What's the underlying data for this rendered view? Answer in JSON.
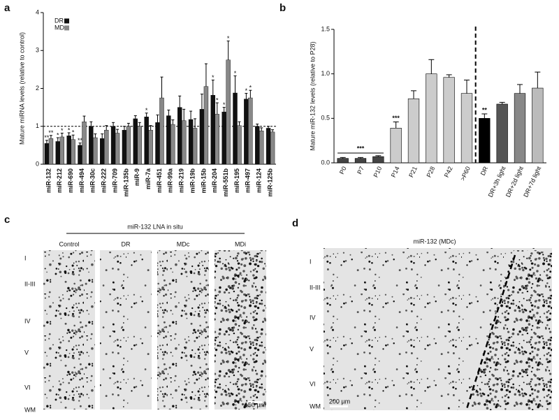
{
  "chart_data": [
    {
      "type": "bar",
      "panel": "a",
      "y_label": "Mature miRNA levels (relative to control)",
      "categories": [
        "miR-132",
        "miR-212",
        "miR-690",
        "miR-494",
        "miR-30c",
        "miR-222",
        "miR-709",
        "miR-135b",
        "miR-9",
        "miR-7a",
        "miR-451",
        "miR-99a",
        "miR-219",
        "miR-19b",
        "miR-15b",
        "miR-204",
        "miR-551b",
        "miR-195",
        "miR-497",
        "miR-124",
        "miR-125b"
      ],
      "series": [
        {
          "name": "DR",
          "color": "#111111",
          "values": [
            0.55,
            0.6,
            0.75,
            0.5,
            1.0,
            0.68,
            1.0,
            0.9,
            1.2,
            1.25,
            1.1,
            1.28,
            1.5,
            1.18,
            1.45,
            1.82,
            1.38,
            1.88,
            1.72,
            1.0,
            0.95
          ],
          "errors": [
            0.08,
            0.1,
            0.08,
            0.06,
            0.12,
            0.12,
            0.1,
            0.1,
            0.08,
            0.1,
            0.2,
            0.15,
            0.3,
            0.22,
            0.4,
            0.4,
            0.12,
            0.45,
            0.15,
            0.06,
            0.05
          ],
          "markers": [
            "**",
            "*",
            "*",
            "**",
            null,
            null,
            null,
            null,
            null,
            "*",
            null,
            null,
            null,
            null,
            null,
            "*",
            "*",
            "*",
            "*",
            null,
            null
          ]
        },
        {
          "name": "MD",
          "color": "#888888",
          "values": [
            0.68,
            0.72,
            0.65,
            1.12,
            0.7,
            0.9,
            0.82,
            1.0,
            1.0,
            0.9,
            1.75,
            1.05,
            1.15,
            0.95,
            2.05,
            1.32,
            2.75,
            1.02,
            1.75,
            0.88,
            0.85
          ],
          "errors": [
            0.08,
            0.1,
            0.12,
            0.15,
            0.1,
            0.12,
            0.1,
            0.08,
            0.1,
            0.12,
            0.55,
            0.12,
            0.3,
            0.25,
            0.6,
            0.3,
            0.5,
            0.1,
            0.2,
            0.08,
            0.06
          ],
          "markers": [
            "**",
            "*",
            "*",
            null,
            null,
            null,
            null,
            null,
            null,
            null,
            null,
            null,
            null,
            null,
            null,
            "*",
            "*",
            null,
            "*",
            null,
            null
          ]
        }
      ],
      "ylim": [
        0,
        4
      ],
      "yticks": [
        0,
        1,
        2,
        3,
        4
      ],
      "reference_line": 1,
      "legend": "top-left"
    },
    {
      "type": "bar",
      "panel": "b",
      "y_label": "Mature miR-132 levels (relative to P28)",
      "categories": [
        "P0",
        "P7",
        "P10",
        "P14",
        "P21",
        "P28",
        "P42",
        ">P60",
        "DR",
        "DR+3h light",
        "DR+2d light",
        "DR+7d light"
      ],
      "values": [
        0.05,
        0.05,
        0.07,
        0.39,
        0.72,
        1.0,
        0.96,
        0.78,
        0.5,
        0.66,
        0.78,
        0.84
      ],
      "errors": [
        0.01,
        0.01,
        0.01,
        0.07,
        0.09,
        0.16,
        0.03,
        0.15,
        0.05,
        0.02,
        0.1,
        0.18
      ],
      "colors": [
        "#444444",
        "#444444",
        "#444444",
        "#cccccc",
        "#cccccc",
        "#cccccc",
        "#cccccc",
        "#cccccc",
        "#000000",
        "#555555",
        "#888888",
        "#bbbbbb"
      ],
      "markers": [
        null,
        null,
        null,
        "***",
        null,
        null,
        null,
        null,
        "**",
        null,
        null,
        null
      ],
      "bracket": {
        "label": "***",
        "start": "P0",
        "end": "P10"
      },
      "divider_after": ">P60",
      "ylim": [
        0,
        1.5
      ],
      "yticks": [
        {
          "value": 0,
          "label": "0.0"
        },
        0.5,
        {
          "value": 1,
          "label": "1.0"
        },
        1.5
      ]
    }
  ],
  "images": {
    "c": {
      "panel": "c",
      "title": "miR-132 LNA in situ",
      "columns": [
        "Control",
        "DR",
        "MDc",
        "MDi"
      ],
      "layers": [
        "I",
        "II-III",
        "IV",
        "V",
        "VI",
        "WM"
      ],
      "scale_bar": "150 µm"
    },
    "d": {
      "panel": "d",
      "title": "miR-132 (MDc)",
      "layers": [
        "I",
        "II-III",
        "IV",
        "V",
        "VI",
        "WM"
      ],
      "scale_bar": "200 µm"
    }
  }
}
